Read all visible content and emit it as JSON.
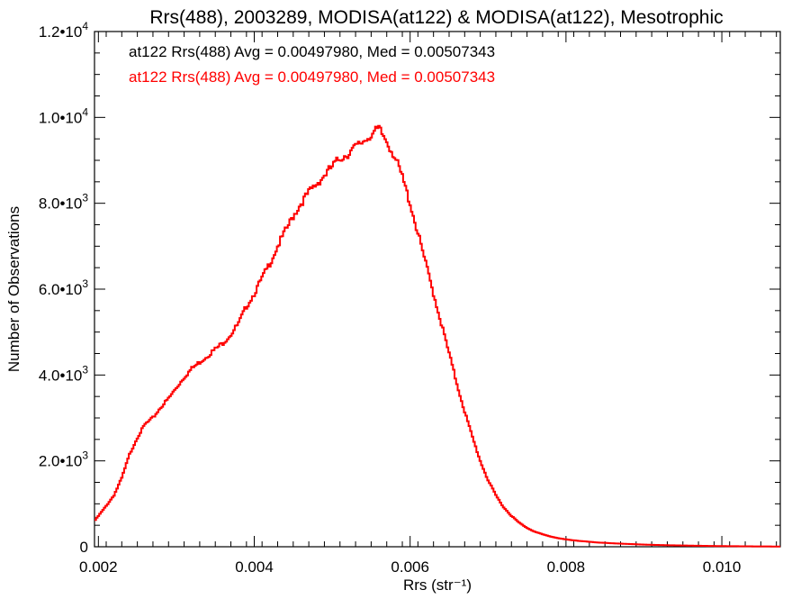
{
  "chart_data": {
    "type": "line",
    "title": "Rrs(488), 2003289, MODISA(at122) & MODISA(at122), Mesotrophic",
    "xlabel": "Rrs (str⁻¹)",
    "ylabel": "Number of Observations",
    "xlim": [
      0.00195,
      0.01075
    ],
    "ylim": [
      0,
      12000
    ],
    "x_ticks": [
      {
        "value": 0.002,
        "label": "0.002"
      },
      {
        "value": 0.004,
        "label": "0.004"
      },
      {
        "value": 0.006,
        "label": "0.006"
      },
      {
        "value": 0.008,
        "label": "0.008"
      },
      {
        "value": 0.01,
        "label": "0.010"
      }
    ],
    "y_ticks": [
      {
        "value": 0,
        "mantissa": "0",
        "exp": ""
      },
      {
        "value": 2000,
        "mantissa": "2.0•10",
        "exp": "3"
      },
      {
        "value": 4000,
        "mantissa": "4.0•10",
        "exp": "3"
      },
      {
        "value": 6000,
        "mantissa": "6.0•10",
        "exp": "3"
      },
      {
        "value": 8000,
        "mantissa": "8.0•10",
        "exp": "3"
      },
      {
        "value": 10000,
        "mantissa": "1.0•10",
        "exp": "4"
      },
      {
        "value": 12000,
        "mantissa": "1.2•10",
        "exp": "4"
      }
    ],
    "legend": [
      {
        "text": "at122 Rrs(488) Avg = 0.00497980, Med = 0.00507343",
        "color": "#000000"
      },
      {
        "text": "at122 Rrs(488) Avg = 0.00497980, Med = 0.00507343",
        "color": "#ff0000"
      }
    ],
    "legend_position": "top-left",
    "grid": false,
    "step": true,
    "series": [
      {
        "color": "#ff0000",
        "points": [
          [
            0.00195,
            600
          ],
          [
            0.0021,
            950
          ],
          [
            0.0022,
            1200
          ],
          [
            0.0023,
            1600
          ],
          [
            0.0024,
            2150
          ],
          [
            0.0025,
            2550
          ],
          [
            0.0026,
            2850
          ],
          [
            0.0027,
            3000
          ],
          [
            0.0028,
            3250
          ],
          [
            0.0029,
            3450
          ],
          [
            0.003,
            3700
          ],
          [
            0.0031,
            3950
          ],
          [
            0.0032,
            4150
          ],
          [
            0.0033,
            4300
          ],
          [
            0.0034,
            4450
          ],
          [
            0.0035,
            4600
          ],
          [
            0.0036,
            4750
          ],
          [
            0.0037,
            4950
          ],
          [
            0.0038,
            5200
          ],
          [
            0.0039,
            5600
          ],
          [
            0.004,
            5900
          ],
          [
            0.0041,
            6250
          ],
          [
            0.0042,
            6600
          ],
          [
            0.0043,
            7000
          ],
          [
            0.0044,
            7350
          ],
          [
            0.0045,
            7700
          ],
          [
            0.0046,
            8000
          ],
          [
            0.0047,
            8250
          ],
          [
            0.0048,
            8450
          ],
          [
            0.0049,
            8650
          ],
          [
            0.005,
            8850
          ],
          [
            0.0051,
            9050
          ],
          [
            0.0052,
            9150
          ],
          [
            0.0053,
            9300
          ],
          [
            0.0054,
            9450
          ],
          [
            0.0055,
            9600
          ],
          [
            0.0056,
            9720
          ],
          [
            0.0057,
            9450
          ],
          [
            0.0058,
            9100
          ],
          [
            0.0059,
            8600
          ],
          [
            0.006,
            8000
          ],
          [
            0.0061,
            7300
          ],
          [
            0.0062,
            6600
          ],
          [
            0.0063,
            5900
          ],
          [
            0.0064,
            5200
          ],
          [
            0.0065,
            4500
          ],
          [
            0.0066,
            3800
          ],
          [
            0.0067,
            3150
          ],
          [
            0.0068,
            2550
          ],
          [
            0.0069,
            2000
          ],
          [
            0.007,
            1550
          ],
          [
            0.0071,
            1200
          ],
          [
            0.0072,
            920
          ],
          [
            0.0073,
            720
          ],
          [
            0.0074,
            560
          ],
          [
            0.0075,
            440
          ],
          [
            0.0076,
            350
          ],
          [
            0.0077,
            290
          ],
          [
            0.0078,
            240
          ],
          [
            0.0079,
            200
          ],
          [
            0.008,
            170
          ],
          [
            0.0082,
            130
          ],
          [
            0.0084,
            100
          ],
          [
            0.0086,
            80
          ],
          [
            0.0088,
            65
          ],
          [
            0.009,
            50
          ],
          [
            0.0092,
            40
          ],
          [
            0.0094,
            32
          ],
          [
            0.0096,
            26
          ],
          [
            0.0098,
            20
          ],
          [
            0.01,
            15
          ],
          [
            0.0102,
            12
          ],
          [
            0.0104,
            9
          ],
          [
            0.0106,
            7
          ],
          [
            0.01075,
            5
          ]
        ]
      }
    ]
  }
}
